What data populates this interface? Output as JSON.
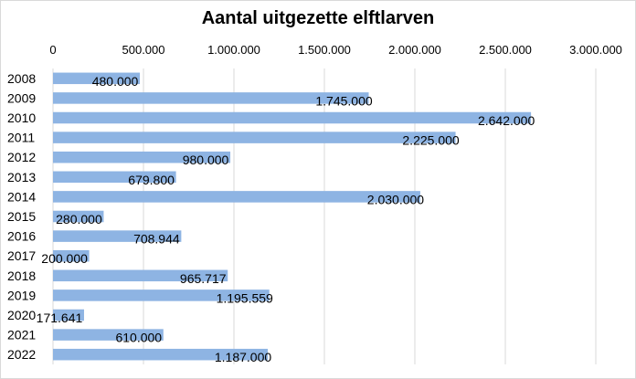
{
  "chart_data": {
    "type": "bar",
    "orientation": "horizontal",
    "title": "Aantal uitgezette elftlarven",
    "xlabel": "",
    "ylabel": "",
    "categories": [
      "2008",
      "2009",
      "2010",
      "2011",
      "2012",
      "2013",
      "2014",
      "2015",
      "2016",
      "2017",
      "2018",
      "2019",
      "2020",
      "2021",
      "2022"
    ],
    "values": [
      480000,
      1745000,
      2642000,
      2225000,
      980000,
      679800,
      2030000,
      280000,
      708944,
      200000,
      965717,
      1195559,
      171641,
      610000,
      1187000
    ],
    "data_labels": [
      "480.000",
      "1.745.000",
      "2.642.000",
      "2.225.000",
      "980.000",
      "679.800",
      "2.030.000",
      "280.000",
      "708.944",
      "200.000",
      "965.717",
      "1.195.559",
      "171.641",
      "610.000",
      "1.187.000"
    ],
    "xlim": [
      0,
      3000000
    ],
    "x_ticks": [
      0,
      500000,
      1000000,
      1500000,
      2000000,
      2500000,
      3000000
    ],
    "x_tick_labels": [
      "0",
      "500.000",
      "1.000.000",
      "1.500.000",
      "2.000.000",
      "2.500.000",
      "3.000.000"
    ],
    "x_axis_position": "top",
    "grid": true,
    "legend": "none",
    "bar_color": "#8eb4e3",
    "grid_color": "#d9d9d9"
  }
}
